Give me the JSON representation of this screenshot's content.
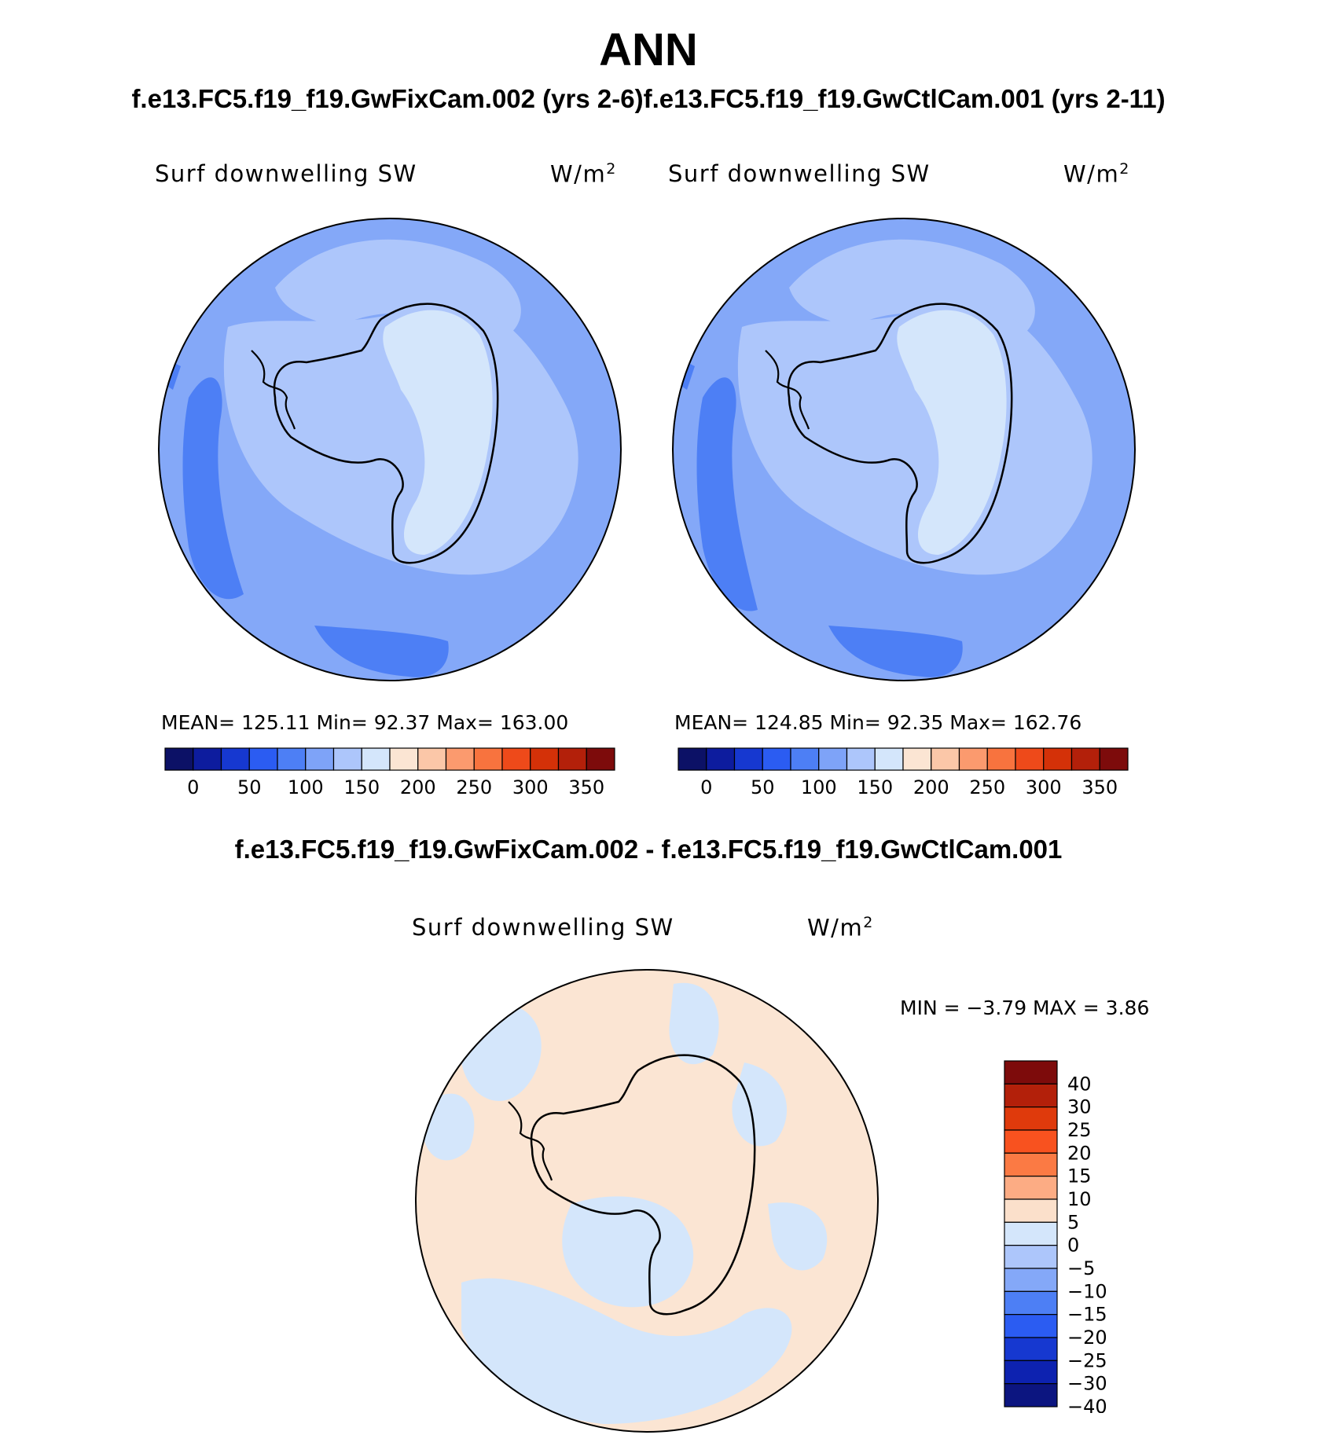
{
  "figure": {
    "title": "ANN",
    "subtitle": "f.e13.FC5.f19_f19.GwFixCam.002 (yrs 2-6)f.e13.FC5.f19_f19.GwCtlCam.001 (yrs 2-11)",
    "diff_title": "f.e13.FC5.f19_f19.GwFixCam.002 - f.e13.FC5.f19_f19.GwCtlCam.001"
  },
  "panels": [
    {
      "variable": "Surf downwelling SW",
      "units_base": "W/m",
      "units_exp": "2",
      "stats": "MEAN= 125.11   Min=   92.37   Max= 163.00"
    },
    {
      "variable": "Surf downwelling SW",
      "units_base": "W/m",
      "units_exp": "2",
      "stats": "MEAN= 124.85   Min=   92.35   Max= 162.76"
    }
  ],
  "diff_panel": {
    "variable": "Surf downwelling SW",
    "units_base": "W/m",
    "units_exp": "2",
    "stats": "MIN =   −3.79 MAX =    3.86"
  },
  "colorbar_abs": {
    "colors": [
      "#0c1166",
      "#0d1c9e",
      "#1638d0",
      "#2b5cf2",
      "#4d7ff5",
      "#7ea3f8",
      "#adc6fb",
      "#d4e6fb",
      "#fbe5d3",
      "#fbc7a8",
      "#fb9a6e",
      "#f8733e",
      "#ee4a1a",
      "#d43108",
      "#b3200a",
      "#7d0b0b"
    ],
    "labels": [
      "0",
      "50",
      "100",
      "150",
      "200",
      "250",
      "300",
      "350"
    ]
  },
  "colorbar_diff": {
    "colors": [
      "#7d0b0b",
      "#b3200a",
      "#df3a0c",
      "#f8521f",
      "#fb7a44",
      "#fcac84",
      "#fbe0cb",
      "#d4e6fb",
      "#adc6fb",
      "#84a8f8",
      "#4d7ff5",
      "#2b5cf2",
      "#1638d0",
      "#0d22b0",
      "#0c1580"
    ],
    "labels": [
      "40",
      "30",
      "25",
      "20",
      "15",
      "10",
      "5",
      "0",
      "−5",
      "−10",
      "−15",
      "−20",
      "−25",
      "−30",
      "−40"
    ]
  }
}
